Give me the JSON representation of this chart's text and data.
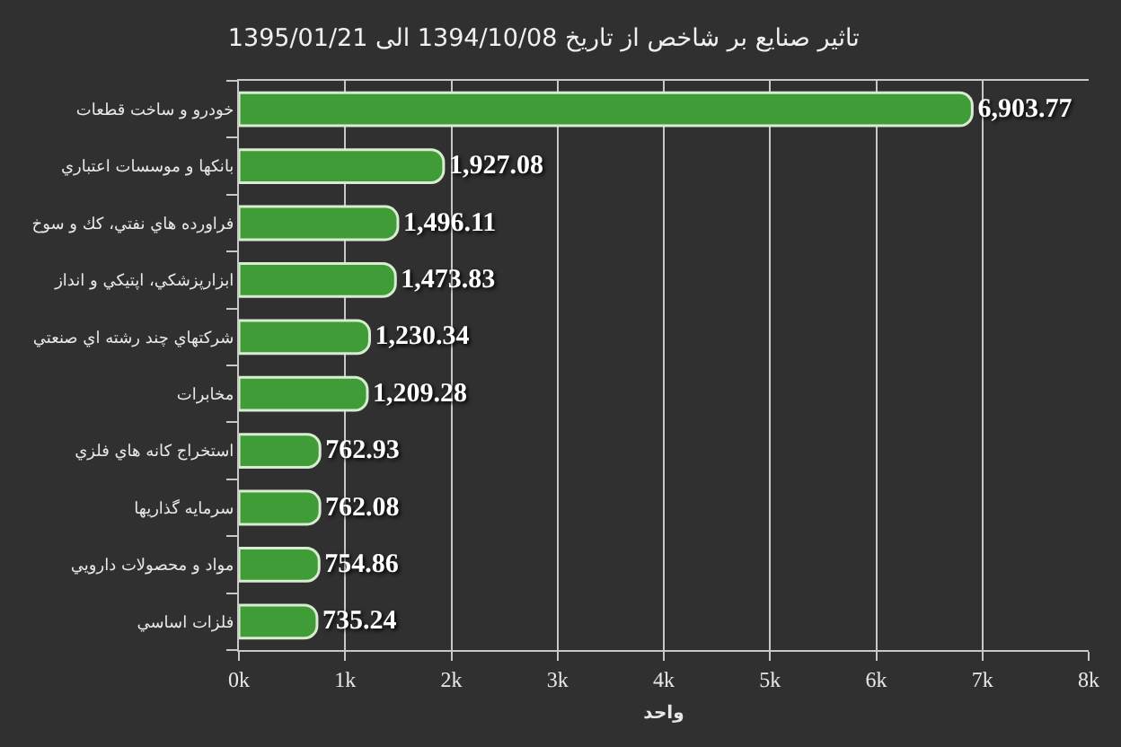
{
  "chart_data": {
    "type": "bar",
    "orientation": "horizontal",
    "title": "تاثير صنايع بر شاخص از تاريخ 1394/10/08 الی 1395/01/21",
    "xlabel": "واحد",
    "categories": [
      "خودرو و ساخت قطعات",
      "بانكها و موسسات اعتباري",
      "فراورده هاي نفتي، كك و سوخ",
      "ابزارپزشكي، اپتيكي و انداز",
      "شركتهاي چند رشته اي صنعتي",
      "مخابرات",
      "استخراج كانه هاي فلزي",
      "سرمايه گذاريها",
      "مواد و محصولات دارويي",
      "فلزات اساسي"
    ],
    "values": [
      6903.77,
      1927.08,
      1496.11,
      1473.83,
      1230.34,
      1209.28,
      762.93,
      762.08,
      754.86,
      735.24
    ],
    "value_labels": [
      "6,903.77",
      "1,927.08",
      "1,496.11",
      "1,473.83",
      "1,230.34",
      "1,209.28",
      "762.93",
      "762.08",
      "754.86",
      "735.24"
    ],
    "color": "#409c36",
    "xlim": [
      0,
      8000
    ],
    "xticks": [
      {
        "value": 0,
        "label": "0k"
      },
      {
        "value": 1000,
        "label": "1k"
      },
      {
        "value": 2000,
        "label": "2k"
      },
      {
        "value": 3000,
        "label": "3k"
      },
      {
        "value": 4000,
        "label": "4k"
      },
      {
        "value": 5000,
        "label": "5k"
      },
      {
        "value": 6000,
        "label": "6k"
      },
      {
        "value": 7000,
        "label": "7k"
      },
      {
        "value": 8000,
        "label": "8k"
      }
    ],
    "grid": "x"
  }
}
